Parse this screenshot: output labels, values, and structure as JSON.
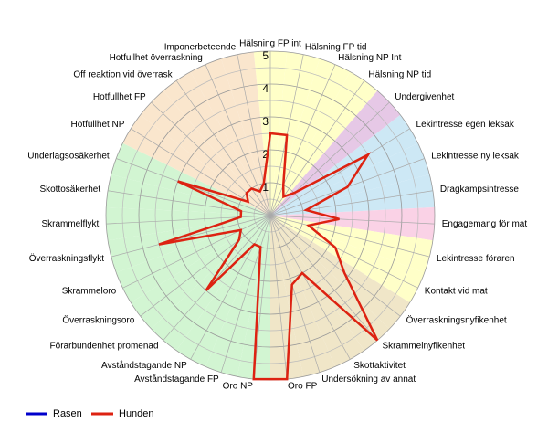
{
  "chart_data": {
    "type": "radar",
    "categories": [
      "Hälsning FP int",
      "Hälsning FP tid",
      "Hälsning NP Int",
      "Hälsning NP tid",
      "Undergivenhet",
      "Lekintresse egen leksak",
      "Lekintresse ny leksak",
      "Dragkampsintresse",
      "Engagemang för mat",
      "Lekintresse föraren",
      "Kontakt vid mat",
      "Överraskningsnyfikenhet",
      "Skrammelnyfikenhet",
      "Skottaktivitet",
      "Undersökning av annat",
      "Oro FP",
      "Oro NP",
      "Avståndstagande FP",
      "Avståndstagande NP",
      "Förarbundenhet promenad",
      "Överraskningsoro",
      "Skrammeloro",
      "Överraskningsflykt",
      "Skrammelflykt",
      "Skottosäkerhet",
      "Underlagsosäkerhet",
      "Hotfullhet NP",
      "Hotfullhet FP",
      "Off reaktion vid överrask",
      "Hotfullhet överraskning",
      "Imponerbeteende"
    ],
    "category_colors": [
      "#ffffc8",
      "#ffffc8",
      "#ffffc8",
      "#ffffc8",
      "#e6c8e6",
      "#cde8f5",
      "#cde8f5",
      "#cde8f5",
      "#fad2e6",
      "#ffffc8",
      "#ffffc8",
      "#f0e6c8",
      "#f0e6c8",
      "#f0e6c8",
      "#f0e6c8",
      "#f0e6c8",
      "#d2f5d2",
      "#d2f5d2",
      "#d2f5d2",
      "#d2f5d2",
      "#d2f5d2",
      "#d2f5d2",
      "#d2f5d2",
      "#d2f5d2",
      "#d2f5d2",
      "#d2f5d2",
      "#fae6cd",
      "#fae6cd",
      "#fae6cd",
      "#fae6cd",
      "#fae6cd"
    ],
    "series": [
      {
        "name": "Rasen",
        "color": "#0000cc",
        "values": [
          null,
          null,
          null,
          null,
          null,
          null,
          null,
          null,
          null,
          null,
          null,
          null,
          null,
          null,
          null,
          null,
          null,
          null,
          null,
          null,
          null,
          null,
          null,
          null,
          null,
          null,
          null,
          null,
          null,
          null,
          null
        ]
      },
      {
        "name": "Hunden",
        "color": "#dd2211",
        "values": [
          2.5,
          2.5,
          1,
          0.7,
          1,
          3.5,
          2.5,
          1.1,
          2.1,
          1.2,
          2.2,
          2.85,
          5,
          2,
          2.2,
          5,
          5,
          1,
          1,
          3,
          1.2,
          1,
          3.5,
          0.9,
          0.9,
          3,
          0.8,
          1,
          1,
          0.8,
          1
        ]
      }
    ],
    "ylim": [
      0,
      5
    ],
    "yticks": [
      1,
      2,
      3,
      4,
      5
    ],
    "minor_yticks": [
      0.5,
      1.5,
      2.5,
      3.5,
      4.5
    ],
    "grid": true,
    "legend": "bottom-left"
  }
}
